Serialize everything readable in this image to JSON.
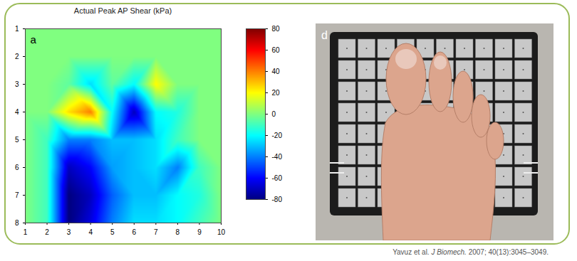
{
  "chart_data": {
    "type": "heatmap",
    "title": "Actual Peak AP Shear (kPa)",
    "annotations": [
      "a"
    ],
    "x": [
      1,
      2,
      3,
      4,
      5,
      6,
      7,
      8,
      9,
      10
    ],
    "y": [
      1,
      2,
      3,
      4,
      5,
      6,
      7,
      8
    ],
    "values": [
      [
        0,
        0,
        0,
        0,
        0,
        0,
        0,
        0,
        0,
        0
      ],
      [
        0,
        0,
        0,
        0,
        0,
        0,
        0,
        0,
        0,
        0
      ],
      [
        0,
        0,
        -5,
        -25,
        -5,
        -20,
        20,
        0,
        0,
        0
      ],
      [
        0,
        0,
        25,
        40,
        -20,
        -70,
        -20,
        -15,
        0,
        0
      ],
      [
        0,
        -10,
        -40,
        -40,
        -30,
        -30,
        -25,
        -10,
        0,
        0
      ],
      [
        0,
        -10,
        -70,
        -60,
        -35,
        -30,
        -25,
        -40,
        -10,
        0
      ],
      [
        0,
        -10,
        -80,
        -70,
        -45,
        -30,
        -30,
        -20,
        -15,
        0
      ],
      [
        0,
        -10,
        -80,
        -65,
        -40,
        -25,
        -25,
        -20,
        -10,
        0
      ]
    ],
    "xlim": [
      1,
      10
    ],
    "ylim": [
      1,
      8
    ],
    "xticks": [
      1,
      2,
      3,
      4,
      5,
      6,
      7,
      8,
      9,
      10
    ],
    "yticks": [
      1,
      2,
      3,
      4,
      5,
      6,
      7,
      8
    ],
    "colorbar": {
      "lim": [
        -80,
        80
      ],
      "ticks": [
        -80,
        -60,
        -40,
        -20,
        0,
        20,
        40,
        60,
        80
      ]
    }
  },
  "photo": {
    "panel_label": "d"
  },
  "citation": {
    "authors": "Yavuz et al.",
    "journal": "J Biomech.",
    "details": "2007; 40(13):3045–3049."
  }
}
